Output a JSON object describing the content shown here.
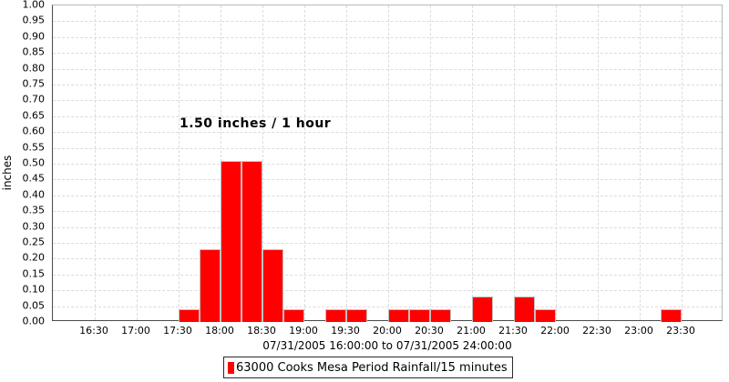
{
  "chart_data": {
    "type": "bar",
    "title": "",
    "ylabel": "inches",
    "xlabel": "07/31/2005 16:00:00 to 07/31/2005 24:00:00",
    "ylim": [
      0.0,
      1.0
    ],
    "ytick_step": 0.05,
    "interval_minutes": 15,
    "grid": true,
    "categories": [
      "16:00",
      "16:15",
      "16:30",
      "16:45",
      "17:00",
      "17:15",
      "17:30",
      "17:45",
      "18:00",
      "18:15",
      "18:30",
      "18:45",
      "19:00",
      "19:15",
      "19:30",
      "19:45",
      "20:00",
      "20:15",
      "20:30",
      "20:45",
      "21:00",
      "21:15",
      "21:30",
      "21:45",
      "22:00",
      "22:15",
      "22:30",
      "22:45",
      "23:00",
      "23:15",
      "23:30",
      "23:45"
    ],
    "values": [
      0,
      0,
      0,
      0,
      0,
      0,
      0.04,
      0.23,
      0.51,
      0.51,
      0.23,
      0.04,
      0,
      0.04,
      0.04,
      0,
      0.04,
      0.04,
      0.04,
      0,
      0.08,
      0,
      0.08,
      0.04,
      0,
      0,
      0,
      0,
      0,
      0.04,
      0,
      0
    ],
    "xticks": [
      "16:30",
      "17:00",
      "17:30",
      "18:00",
      "18:30",
      "19:00",
      "19:30",
      "20:00",
      "20:30",
      "21:00",
      "21:30",
      "22:00",
      "22:30",
      "23:00",
      "23:30"
    ],
    "annotation": "1.50 inches / 1 hour",
    "legend": {
      "label": "63000 Cooks Mesa Period Rainfall/15 minutes",
      "position": "bottom"
    }
  },
  "colors": {
    "bar_fill": "#ff0000",
    "bar_border": "#c0c0c0",
    "gridline": "#dcdcdc",
    "axis": "#4a4a4a",
    "text": "#000000"
  }
}
